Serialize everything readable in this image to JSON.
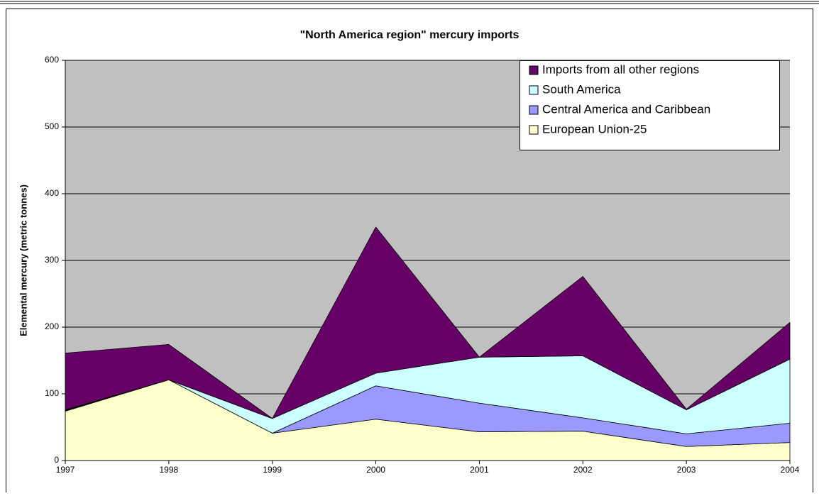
{
  "chart_data": {
    "type": "stacked-area",
    "title": "\"North America region\" mercury imports",
    "y_label": "Elemental mercury (metric tonnes)",
    "categories": [
      "1997",
      "1998",
      "1999",
      "2000",
      "2001",
      "2002",
      "2003",
      "2004"
    ],
    "series": [
      {
        "name": "European Union-25",
        "color": "#ffffcc",
        "values": [
          74,
          121,
          41,
          62,
          43,
          44,
          21,
          27
        ]
      },
      {
        "name": "Central America and Caribbean",
        "color": "#9999ff",
        "values": [
          1,
          0,
          0,
          50,
          43,
          20,
          19,
          29
        ]
      },
      {
        "name": "South America",
        "color": "#ccffff",
        "values": [
          1,
          0,
          22,
          19,
          69,
          93,
          36,
          96
        ]
      },
      {
        "name": "Imports from all other regions",
        "color": "#660066",
        "values": [
          85,
          53,
          0,
          219,
          0,
          119,
          1,
          55
        ]
      }
    ],
    "ylim": [
      0,
      600
    ],
    "yticks": [
      0,
      100,
      200,
      300,
      400,
      500,
      600
    ],
    "grid": true,
    "legend": "top-right"
  }
}
